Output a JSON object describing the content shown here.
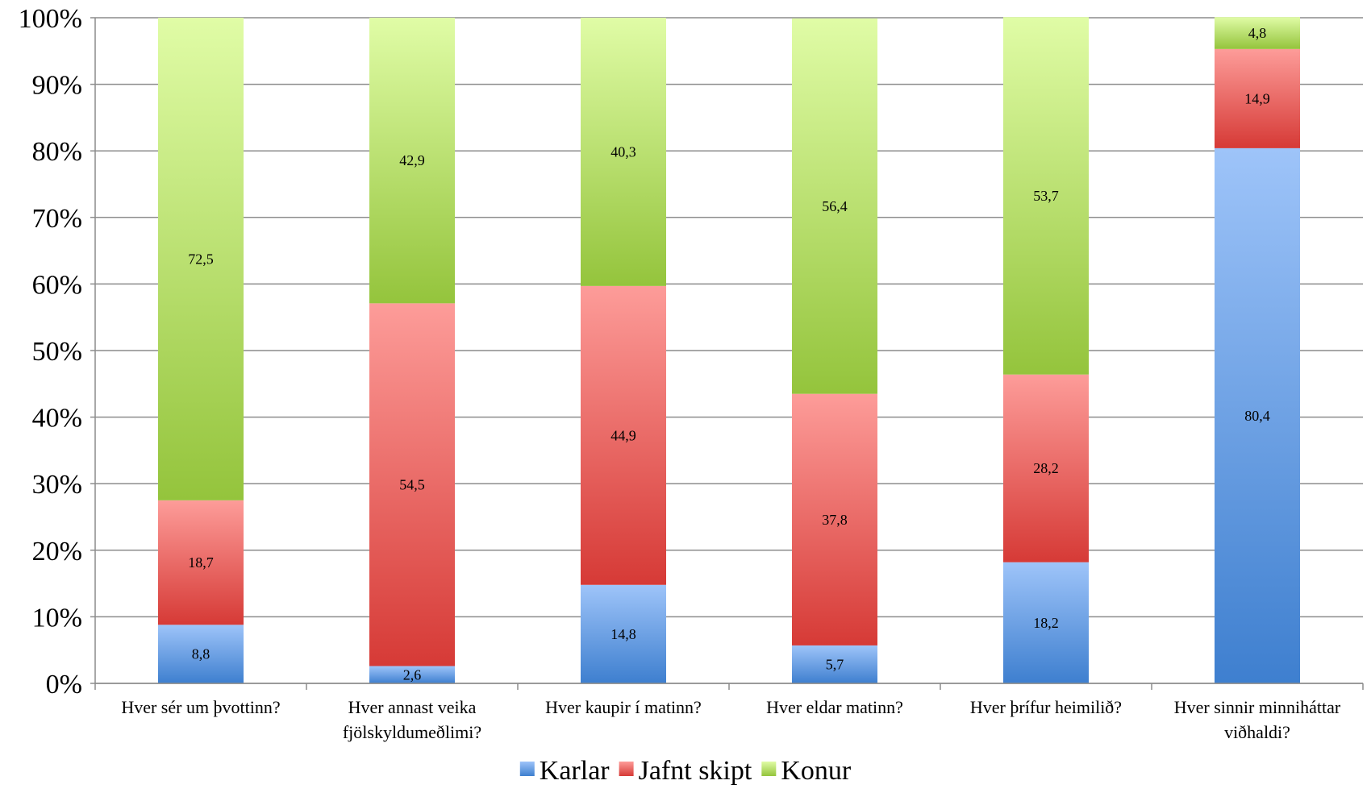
{
  "chart_data": {
    "type": "bar",
    "stacked": true,
    "percent": true,
    "ylim": [
      0,
      100
    ],
    "yticks": [
      "0%",
      "10%",
      "20%",
      "30%",
      "40%",
      "50%",
      "60%",
      "70%",
      "80%",
      "90%",
      "100%"
    ],
    "categories": [
      [
        "Hver sér um þvottinn?"
      ],
      [
        "Hver annast veika",
        "fjölskyldumeðlimi?"
      ],
      [
        "Hver kaupir í matinn?"
      ],
      [
        "Hver eldar matinn?"
      ],
      [
        "Hver þrífur heimilið?"
      ],
      [
        "Hver sinnir minniháttar",
        "viðhaldi?"
      ]
    ],
    "series": [
      {
        "name": "Karlar",
        "values": [
          8.8,
          2.6,
          14.8,
          5.7,
          18.2,
          80.4
        ],
        "labels": [
          "8,8",
          "2,6",
          "14,8",
          "5,7",
          "18,2",
          "80,4"
        ],
        "color_dark": "#3e7fcf",
        "color_light": "#9ec4f9"
      },
      {
        "name": "Jafnt skipt",
        "values": [
          18.7,
          54.5,
          44.9,
          37.8,
          28.2,
          14.9
        ],
        "labels": [
          "18,7",
          "54,5",
          "44,9",
          "37,8",
          "28,2",
          "14,9"
        ],
        "color_dark": "#d63a36",
        "color_light": "#fd9c99"
      },
      {
        "name": "Konur",
        "values": [
          72.5,
          42.9,
          40.3,
          56.4,
          53.7,
          4.8
        ],
        "labels": [
          "72,5",
          "42,9",
          "40,3",
          "56,4",
          "53,7",
          "4,8"
        ],
        "color_dark": "#94c43c",
        "color_light": "#e0fca6"
      }
    ],
    "grid": true,
    "legend_position": "bottom"
  }
}
